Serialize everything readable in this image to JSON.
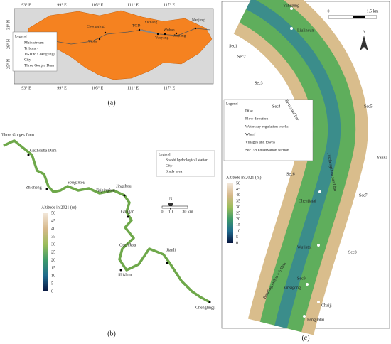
{
  "panel_a": {
    "caption": "(a)",
    "lon_labels": [
      "93° E",
      "99° E",
      "105° E",
      "111° E",
      "117° E"
    ],
    "lat_labels": [
      "31° N",
      "28° N",
      "25° N"
    ],
    "legend": {
      "title": "Legend",
      "items": [
        "Main stream",
        "Tributary",
        "TGD to Chenglingji",
        "City",
        "Three Gorges Dam"
      ]
    },
    "cities": [
      "Chongqing",
      "Yibin",
      "TGD",
      "Yichang",
      "Wuhan",
      "Yueyang",
      "Jiujiang",
      "Nanjing"
    ]
  },
  "panel_b": {
    "caption": "(b)",
    "places": [
      "Three Gorges Dam",
      "Gezhouba Dam",
      "Zhicheng",
      "Songzikou",
      "Taipingkou",
      "Jingzhou",
      "Gongan",
      "Ouchikou",
      "Jianli",
      "Shishou",
      "Chenglingji"
    ],
    "legend": {
      "title": "Legend",
      "items": [
        "Shashi hydrological station",
        "City",
        "Study area"
      ]
    },
    "scale": [
      "0",
      "10",
      "30 km"
    ],
    "north": "N",
    "altitude": {
      "title": "Altitude in 2021 (m)",
      "ticks": [
        50,
        45,
        40,
        35,
        30,
        25,
        20,
        15,
        10,
        5,
        0
      ]
    }
  },
  "panel_c": {
    "caption": "(c)",
    "places": [
      "Yuheping",
      "Liulincun",
      "Yanka",
      "Chenjiatai",
      "Wujiatai",
      "Xinsigong",
      "Chaiji",
      "Fengjiatai"
    ],
    "sections": [
      "Sec1",
      "Sec2",
      "Sec3",
      "Sec4",
      "Sec5",
      "Sec6",
      "Sec7",
      "Sec8",
      "Sec9"
    ],
    "bars": [
      "Yayu sand bar",
      "Jinchengzhou sand bar"
    ],
    "radius": "Bending radius = 5.6km",
    "scale": [
      "0",
      "1.5 km"
    ],
    "north": "N",
    "legend": {
      "title": "Legend",
      "items": [
        "Dike",
        "Flow direction",
        "Waterway regulation works",
        "Wharf",
        "Villages and towns",
        "Sec1~9  Observation section"
      ]
    },
    "altitude": {
      "title": "Altitude in 2021 (m)",
      "ticks": [
        50,
        45,
        40,
        35,
        30,
        25,
        20,
        15,
        10,
        5,
        0
      ]
    }
  }
}
